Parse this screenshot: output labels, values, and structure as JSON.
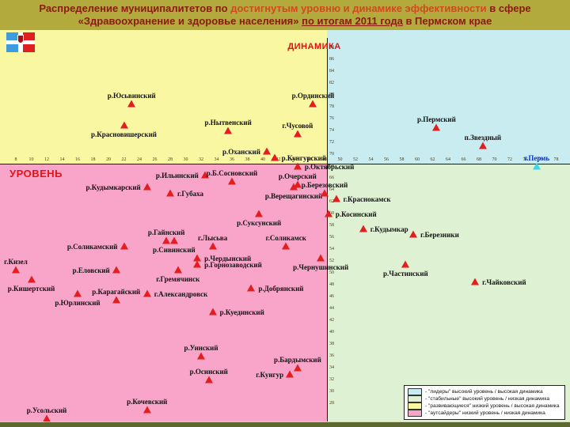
{
  "title": {
    "l1a": "Распределение муниципалитетов по ",
    "l1b": "достигнутым уровню и динамике эффективности",
    "l1c": " в сфере",
    "l2a": "«Здравоохранение и здоровье населения» ",
    "l2b": "по итогам 2011 года",
    "l2c": " в Пермском крае"
  },
  "axes": {
    "x_label": "УРОВЕНЬ",
    "y_label": "ДИНАМИКА",
    "x_ticks": [
      8,
      10,
      12,
      14,
      16,
      18,
      20,
      22,
      24,
      26,
      28,
      30,
      32,
      34,
      36,
      38,
      40,
      42,
      44,
      46,
      48,
      50,
      52,
      54,
      56,
      58,
      60,
      62,
      64,
      66,
      68,
      70,
      72,
      74,
      76,
      78
    ],
    "y_ticks": [
      88,
      86,
      84,
      82,
      80,
      78,
      76,
      74,
      72,
      70,
      68,
      66,
      64,
      62,
      60,
      58,
      56,
      54,
      52,
      50,
      48,
      46,
      44,
      42,
      40,
      38,
      36,
      34,
      32,
      30,
      28
    ]
  },
  "legend": {
    "items": [
      {
        "color": "#c9ecf1",
        "label": "- \"лидеры\" высокий уровень / высокая динамика"
      },
      {
        "color": "#def2d3",
        "label": "- \"стабильные\" высокий уровень / низкая динамика"
      },
      {
        "color": "#faf7a3",
        "label": "- \"развивающиеся\" низкий уровень / высокая динамика"
      },
      {
        "color": "#f8a5c9",
        "label": "- \"аутсайдеры\" низкий уровень / низкая динамика"
      }
    ]
  },
  "colors": {
    "marker_default": "#e31e1e",
    "quadrant_yellow": "#faf7a3",
    "quadrant_cyan": "#c9ecf1",
    "quadrant_pink": "#f8a5c9",
    "quadrant_green": "#def2d3",
    "title_bg": "#b2aa3c",
    "title_text": "#8b1a10",
    "title_highlight": "#d04a1e",
    "axis_caption": "#e01212"
  },
  "chart_data": {
    "type": "scatter",
    "title": "Распределение муниципалитетов по достигнутым уровню и динамике эффективности в сфере «Здравоохранение и здоровье населения» по итогам 2011 года в Пермском крае",
    "xlabel": "УРОВЕНЬ",
    "ylabel": "ДИНАМИКА",
    "xlim": [
      6,
      79
    ],
    "ylim": [
      24,
      90
    ],
    "grid": false,
    "legend_position": "bottom-right",
    "quadrant_split": {
      "level": 48.3,
      "dynamics": 68.4
    },
    "series": [
      {
        "name": "лидеры: высокий уровень / высокая динамика",
        "quadrant": "top-right",
        "color": "#c9ecf1",
        "points": [
          {
            "name": "р.Пермский",
            "level": 62.5,
            "dynamics": 74.5,
            "label_dir": "above"
          },
          {
            "name": "п.Звездный",
            "level": 68.5,
            "dynamics": 71.5,
            "label_dir": "above"
          },
          {
            "name": "г.Пермь",
            "level": 75.5,
            "dynamics": 68,
            "label_dir": "above",
            "marker_color": "#3fd6e8",
            "label_color": "#0b32c8"
          }
        ]
      },
      {
        "name": "стабильные: высокий уровень / низкая динамика",
        "quadrant": "bottom-right",
        "color": "#def2d3",
        "points": [
          {
            "name": "г.Краснокамск",
            "level": 49.5,
            "dynamics": 62.5,
            "label_dir": "right"
          },
          {
            "name": "р.Косинский",
            "level": 48.5,
            "dynamics": 60,
            "label_dir": "right"
          },
          {
            "name": "г.Кудымкар",
            "level": 53,
            "dynamics": 57.5,
            "label_dir": "right"
          },
          {
            "name": "г.Березники",
            "level": 59.5,
            "dynamics": 56.5,
            "label_dir": "right"
          },
          {
            "name": "р.Частинский",
            "level": 58.5,
            "dynamics": 51.5,
            "label_dir": "below"
          },
          {
            "name": "г.Чайковский",
            "level": 67.5,
            "dynamics": 48.5,
            "label_dir": "right"
          }
        ]
      },
      {
        "name": "развивающиеся: низкий уровень / высокая динамика",
        "quadrant": "top-left",
        "color": "#faf7a3",
        "points": [
          {
            "name": "р.Юсьвинский",
            "level": 23,
            "dynamics": 78.5,
            "label_dir": "above"
          },
          {
            "name": "р.Красновишерский",
            "level": 22,
            "dynamics": 75,
            "label_dir": "below"
          },
          {
            "name": "р.Нытвенский",
            "level": 35.5,
            "dynamics": 74,
            "label_dir": "above"
          },
          {
            "name": "р.Ординский",
            "level": 46.5,
            "dynamics": 78.5,
            "label_dir": "above"
          },
          {
            "name": "г.Чусовой",
            "level": 44.5,
            "dynamics": 73.5,
            "label_dir": "above"
          },
          {
            "name": "р.Оханский",
            "level": 40.5,
            "dynamics": 70.5,
            "label_dir": "left"
          },
          {
            "name": "р.Кунгурский",
            "level": 41.5,
            "dynamics": 69.5,
            "label_dir": "right"
          },
          {
            "name": "р.Октябрьский",
            "level": 44.5,
            "dynamics": 68,
            "label_dir": "right"
          }
        ]
      },
      {
        "name": "аутсайдеры: низкий уровень / низкая динамика",
        "quadrant": "bottom-left",
        "color": "#f8a5c9",
        "points": [
          {
            "name": "р.Ильинский",
            "level": 32.5,
            "dynamics": 66.5,
            "label_dir": "left"
          },
          {
            "name": "р.Б.Сосновский",
            "level": 36,
            "dynamics": 65.5,
            "label_dir": "above"
          },
          {
            "name": "р.Очерский",
            "level": 44.5,
            "dynamics": 65,
            "label_dir": "above"
          },
          {
            "name": "р.Кудымкарский",
            "level": 25,
            "dynamics": 64.5,
            "label_dir": "left"
          },
          {
            "name": "г.Губаха",
            "level": 28,
            "dynamics": 63.5,
            "label_dir": "right"
          },
          {
            "name": "р.Верещагинский",
            "level": 44,
            "dynamics": 64.5,
            "label_dir": "below"
          },
          {
            "name": "р.Березовский",
            "level": 48,
            "dynamics": 63.5,
            "label_dir": "above"
          },
          {
            "name": "р.Суксунский",
            "level": 39.5,
            "dynamics": 60,
            "label_dir": "below"
          },
          {
            "name": "р.Гайнский",
            "level": 27.5,
            "dynamics": 55.5,
            "label_dir": "above"
          },
          {
            "name": "р.Сивинский",
            "level": 28.5,
            "dynamics": 55.5,
            "label_dir": "below"
          },
          {
            "name": "г.Лысьва",
            "level": 33.5,
            "dynamics": 54.5,
            "label_dir": "above"
          },
          {
            "name": "г.Соликамск",
            "level": 43,
            "dynamics": 54.5,
            "label_dir": "above"
          },
          {
            "name": "р.Соликамский",
            "level": 22,
            "dynamics": 54.5,
            "label_dir": "left"
          },
          {
            "name": "г.Кизел",
            "level": 8,
            "dynamics": 50.5,
            "label_dir": "above"
          },
          {
            "name": "р.Чердынский",
            "level": 31.5,
            "dynamics": 52.5,
            "label_dir": "right"
          },
          {
            "name": "р.Горнозаводский",
            "level": 31.5,
            "dynamics": 51.5,
            "label_dir": "right"
          },
          {
            "name": "р.Чернушинский",
            "level": 47.5,
            "dynamics": 52.5,
            "label_dir": "below"
          },
          {
            "name": "р.Еловский",
            "level": 21,
            "dynamics": 50.5,
            "label_dir": "left"
          },
          {
            "name": "г.Гремячинск",
            "level": 29,
            "dynamics": 50.5,
            "label_dir": "below"
          },
          {
            "name": "р.Кишертский",
            "level": 10,
            "dynamics": 49,
            "label_dir": "below"
          },
          {
            "name": "р.Добрянский",
            "level": 38.5,
            "dynamics": 47.5,
            "label_dir": "right"
          },
          {
            "name": "р.Карагайский",
            "level": 21,
            "dynamics": 45.5,
            "label_dir": "above"
          },
          {
            "name": "г.Александровск",
            "level": 25,
            "dynamics": 46.5,
            "label_dir": "right"
          },
          {
            "name": "р.Юрлинский",
            "level": 16,
            "dynamics": 46.5,
            "label_dir": "below"
          },
          {
            "name": "р.Куединский",
            "level": 33.5,
            "dynamics": 43.5,
            "label_dir": "right"
          },
          {
            "name": "р.Уинский",
            "level": 32,
            "dynamics": 36,
            "label_dir": "above"
          },
          {
            "name": "р.Бардымский",
            "level": 44.5,
            "dynamics": 34,
            "label_dir": "above"
          },
          {
            "name": "р.Осинский",
            "level": 33,
            "dynamics": 32,
            "label_dir": "above"
          },
          {
            "name": "г.Кунгур",
            "level": 43.5,
            "dynamics": 33,
            "label_dir": "left"
          },
          {
            "name": "р.Кочевский",
            "level": 25,
            "dynamics": 27,
            "label_dir": "above"
          },
          {
            "name": "р.Усольский",
            "level": 12,
            "dynamics": 25.5,
            "label_dir": "above"
          }
        ]
      }
    ]
  }
}
